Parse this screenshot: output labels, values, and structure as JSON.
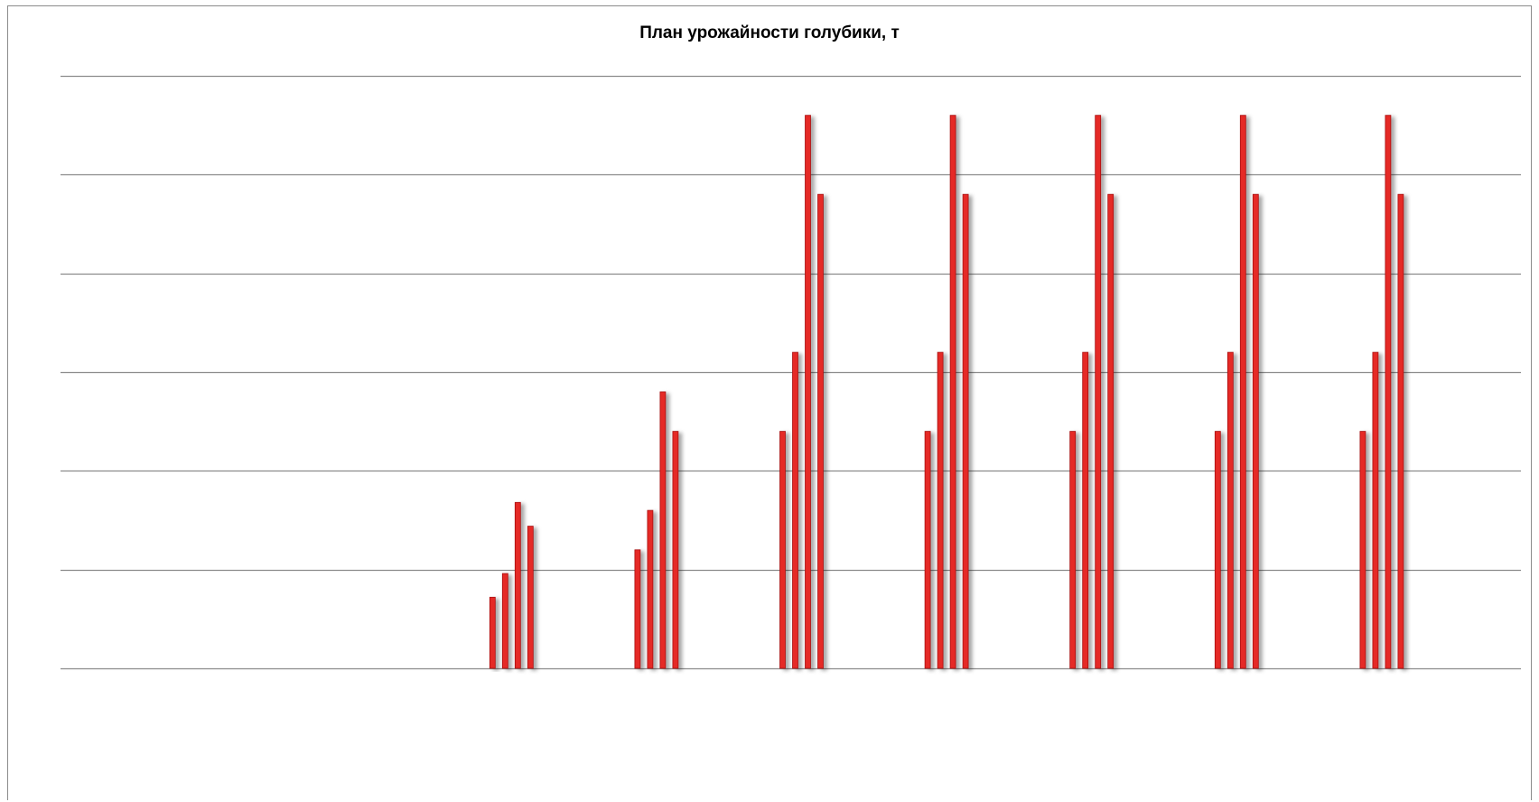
{
  "chart_data": {
    "type": "bar",
    "title": "План урожайности голубики, т",
    "xlabel": "",
    "ylabel": "",
    "categories": [
      "",
      "",
      "",
      "",
      "",
      "",
      "",
      "",
      "",
      ""
    ],
    "series": [
      {
        "values": [
          0,
          0,
          0,
          18,
          30,
          60,
          60,
          60,
          60,
          60
        ]
      },
      {
        "values": [
          0,
          0,
          0,
          24,
          40,
          80,
          80,
          80,
          80,
          80
        ]
      },
      {
        "values": [
          0,
          0,
          0,
          42,
          70,
          140,
          140,
          140,
          140,
          140
        ]
      },
      {
        "values": [
          0,
          0,
          0,
          36,
          60,
          120,
          120,
          120,
          120,
          120
        ]
      }
    ],
    "ylim": [
      0,
      150
    ],
    "gridlines": [
      0,
      25,
      50,
      75,
      100,
      125,
      150
    ],
    "grid": true,
    "legend": "none",
    "colors": {
      "bar_fill": "#e52a27",
      "bar_edge": "#a80f0f",
      "gridline": "#8c8c8c",
      "frame": "#8c8c8c"
    }
  }
}
